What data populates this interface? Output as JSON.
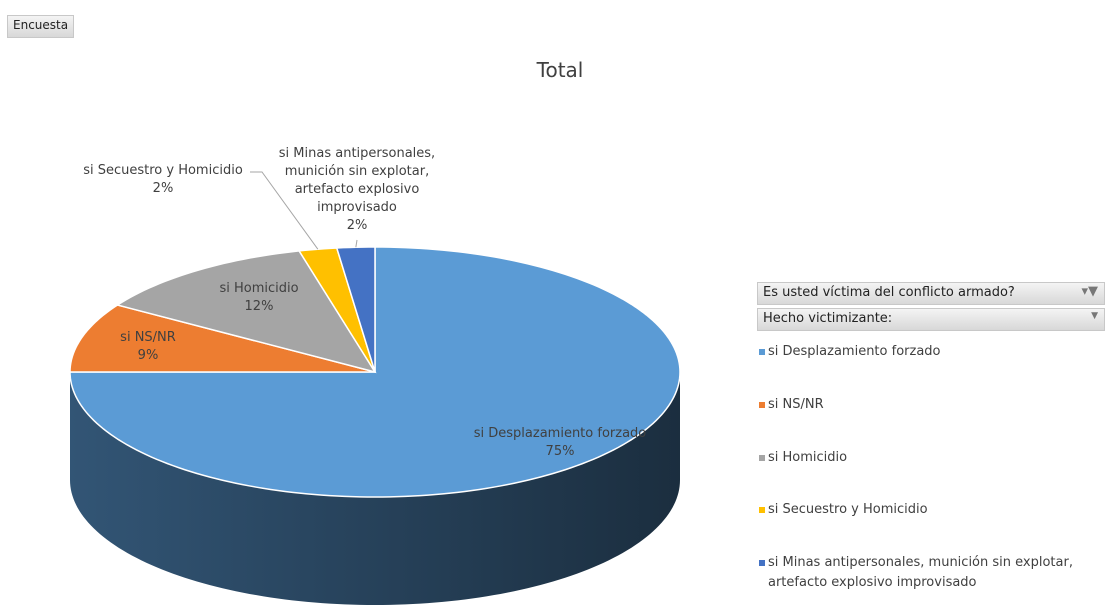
{
  "report_filter": "Encuesta",
  "field_buttons": [
    "Es usted víctima del conflicto armado?",
    "Hecho victimizante:"
  ],
  "chart_data": {
    "type": "pie3d",
    "title": "Total",
    "categories": [
      "si Desplazamiento forzado",
      "si NS/NR",
      "si Homicidio",
      "si Secuestro y Homicidio",
      "si Minas antipersonales, munición sin explotar, artefacto explosivo improvisado"
    ],
    "values": [
      75,
      9,
      12,
      2,
      2
    ],
    "value_labels": [
      "75%",
      "9%",
      "12%",
      "2%",
      "2%"
    ],
    "colors": [
      "#5b9bd5",
      "#ed7d31",
      "#a5a5a5",
      "#ffc000",
      "#4472c4"
    ],
    "legend": "right"
  }
}
